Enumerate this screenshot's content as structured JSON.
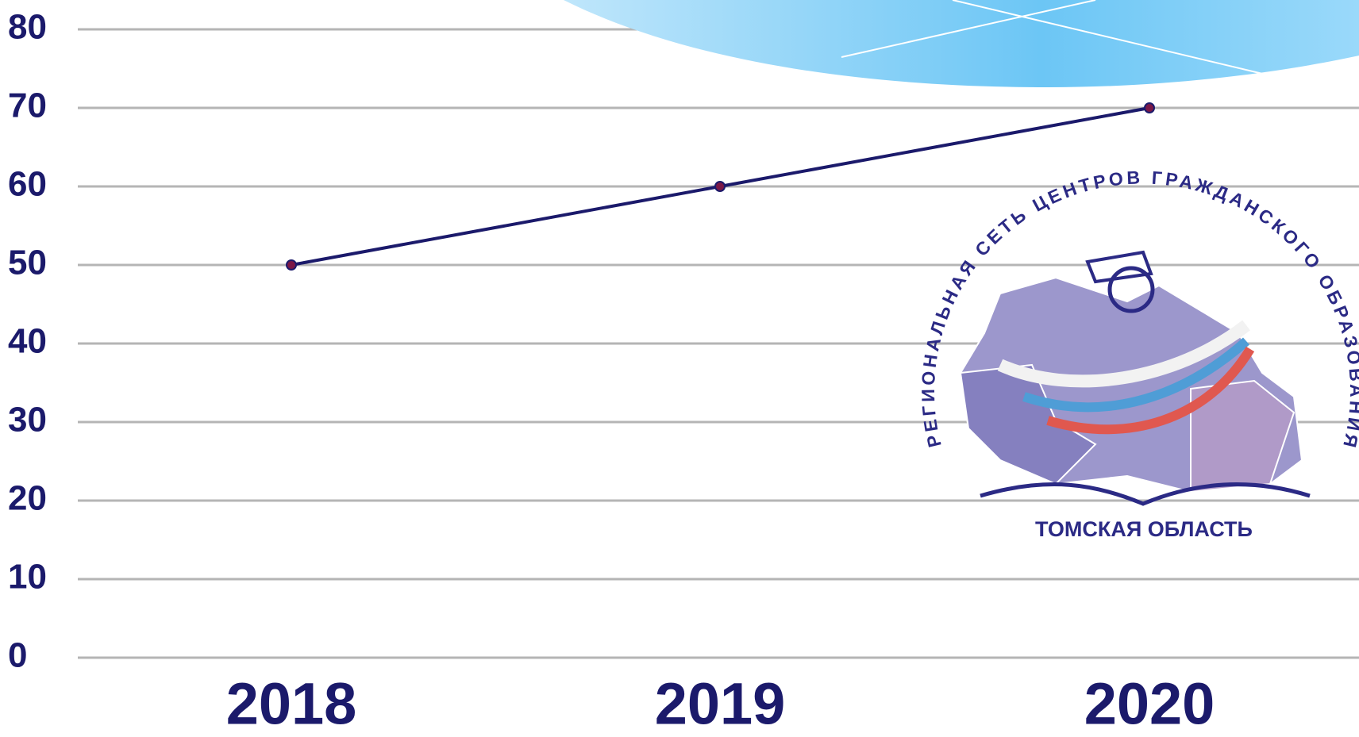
{
  "chart_data": {
    "type": "line",
    "categories": [
      "2018",
      "2019",
      "2020"
    ],
    "series": [
      {
        "color": "#1b1a6b",
        "marker_color": "#7a1747",
        "values": [
          50,
          60,
          70
        ]
      }
    ],
    "ylim": [
      0,
      80
    ],
    "yticks": [
      0,
      10,
      20,
      30,
      40,
      50,
      60,
      70,
      80
    ],
    "grid": true,
    "annotations": [
      "РЕГИОНАЛЬНАЯ СЕТЬ ЦЕНТРОВ ГРАЖДАНСКОГО ОБРАЗОВАНИЯ",
      "ТОМСКАЯ ОБЛАСТЬ"
    ]
  }
}
